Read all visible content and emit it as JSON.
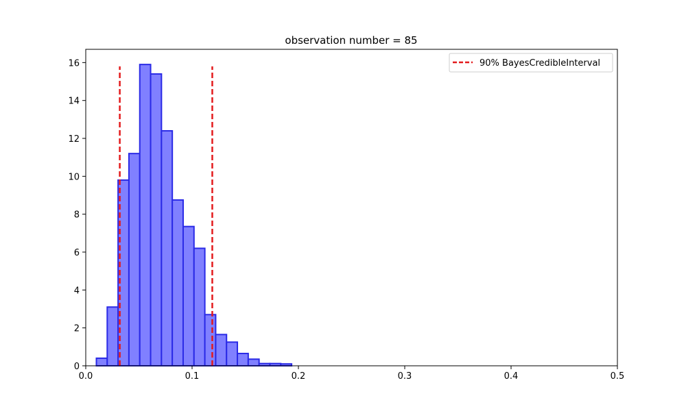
{
  "chart_data": {
    "type": "bar",
    "title": "observation number = 85",
    "xlabel": "",
    "ylabel": "",
    "xlim": [
      0,
      0.5
    ],
    "ylim": [
      0,
      16.7
    ],
    "xticks": [
      0,
      0.1,
      0.2,
      0.3,
      0.4,
      0.5
    ],
    "xtick_labels": [
      "0.0",
      "0.1",
      "0.2",
      "0.3",
      "0.4",
      "0.5"
    ],
    "yticks": [
      0,
      2,
      4,
      6,
      8,
      10,
      12,
      14,
      16
    ],
    "ytick_labels": [
      "0",
      "2",
      "4",
      "6",
      "8",
      "10",
      "12",
      "14",
      "16"
    ],
    "grid": false,
    "legend_position": "top-right",
    "histogram": {
      "name": "",
      "bin_edges": [
        0.01,
        0.0202,
        0.0304,
        0.0406,
        0.0508,
        0.061,
        0.0712,
        0.0814,
        0.0916,
        0.1018,
        0.112,
        0.1222,
        0.1324,
        0.1426,
        0.1528,
        0.163,
        0.1732,
        0.1834,
        0.1936
      ],
      "values": [
        0.4,
        3.1,
        9.8,
        11.2,
        15.9,
        15.4,
        12.4,
        8.75,
        7.35,
        6.2,
        2.7,
        1.65,
        1.25,
        0.65,
        0.35,
        0.12,
        0.12,
        0.1
      ],
      "fill_color": "#8080ff",
      "edge_color": "#2a2ae6"
    },
    "credible_interval": {
      "name": "90% BayesCredibleInterval",
      "lower": 0.032,
      "upper": 0.119,
      "height": 15.8,
      "color": "#e31a1c"
    }
  }
}
